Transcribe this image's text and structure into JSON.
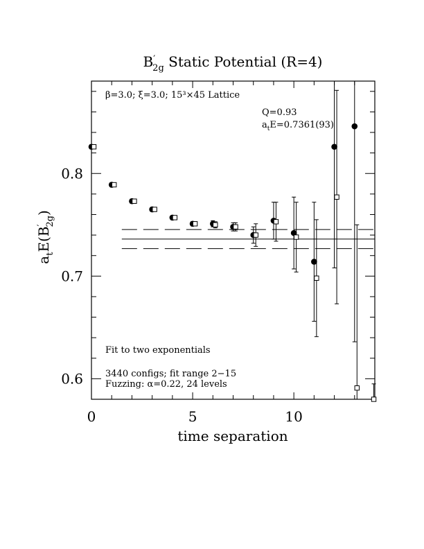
{
  "chart_data": {
    "type": "scatter",
    "title": {
      "main": "B",
      "sub": "2g",
      "prime": "′",
      "rest": " Static Potential (R=4)"
    },
    "ylabel": {
      "pre": "a",
      "pre_sub": "t",
      "main": "E(B",
      "sub": "2g",
      "prime": "′",
      "post": ")"
    },
    "xlabel": "time separation",
    "xlim": [
      0,
      14
    ],
    "ylim": [
      0.58,
      0.89
    ],
    "xticks": [
      {
        "v": 0,
        "label": "0"
      },
      {
        "v": 5,
        "label": "5"
      },
      {
        "v": 10,
        "label": "10"
      }
    ],
    "yticks": [
      {
        "v": 0.6,
        "label": "0.6"
      },
      {
        "v": 0.7,
        "label": "0.7"
      },
      {
        "v": 0.8,
        "label": "0.8"
      }
    ],
    "annotations": {
      "lattice": "β=3.0; ξ=3.0; 15³×45 Lattice",
      "q": "Q=0.93",
      "energy_pre": "a",
      "energy_sub": "t",
      "energy_post": "E=0.7361(93)",
      "fit": "Fit to two exponentials",
      "configs": "3440 configs; fit range 2−15",
      "fuzzing": "Fuzzing: α=0.22, 24 levels"
    },
    "fit": {
      "value": 0.7361,
      "error": 0.0093,
      "x_start": 1.5,
      "x_end": 14
    },
    "series": [
      {
        "name": "",
        "marker": "filled-circle",
        "points": [
          {
            "x": 0,
            "y": 0.826,
            "err": 0.002
          },
          {
            "x": 1,
            "y": 0.789,
            "err": 0.002
          },
          {
            "x": 2,
            "y": 0.773,
            "err": 0.002
          },
          {
            "x": 3,
            "y": 0.765,
            "err": 0.002
          },
          {
            "x": 4,
            "y": 0.757,
            "err": 0.002
          },
          {
            "x": 5,
            "y": 0.751,
            "err": 0.002
          },
          {
            "x": 6,
            "y": 0.751,
            "err": 0.003
          },
          {
            "x": 7,
            "y": 0.748,
            "err": 0.004
          },
          {
            "x": 8,
            "y": 0.74,
            "err": 0.008
          },
          {
            "x": 9,
            "y": 0.754,
            "err": 0.018
          },
          {
            "x": 10,
            "y": 0.742,
            "err": 0.035
          },
          {
            "x": 11,
            "y": 0.714,
            "err": 0.058
          },
          {
            "x": 12,
            "y": 0.826,
            "err": 0.118
          },
          {
            "x": 13,
            "y": 0.846,
            "err": 0.21
          }
        ]
      },
      {
        "name": "",
        "marker": "open-square",
        "points": [
          {
            "x": 0.12,
            "y": 0.826,
            "err": 0.002
          },
          {
            "x": 1.12,
            "y": 0.789,
            "err": 0.002
          },
          {
            "x": 2.12,
            "y": 0.773,
            "err": 0.002
          },
          {
            "x": 3.12,
            "y": 0.765,
            "err": 0.002
          },
          {
            "x": 4.12,
            "y": 0.757,
            "err": 0.002
          },
          {
            "x": 5.12,
            "y": 0.751,
            "err": 0.002
          },
          {
            "x": 6.12,
            "y": 0.75,
            "err": 0.003
          },
          {
            "x": 7.12,
            "y": 0.748,
            "err": 0.004
          },
          {
            "x": 8.12,
            "y": 0.74,
            "err": 0.011
          },
          {
            "x": 9.12,
            "y": 0.753,
            "err": 0.019
          },
          {
            "x": 10.12,
            "y": 0.738,
            "err": 0.034
          },
          {
            "x": 11.12,
            "y": 0.698,
            "err": 0.057
          },
          {
            "x": 12.12,
            "y": 0.777,
            "err": 0.104
          },
          {
            "x": 13.12,
            "y": 0.591,
            "err": 0.159
          },
          {
            "x": 13.95,
            "y": 0.58,
            "err": 0.015
          }
        ]
      }
    ]
  }
}
